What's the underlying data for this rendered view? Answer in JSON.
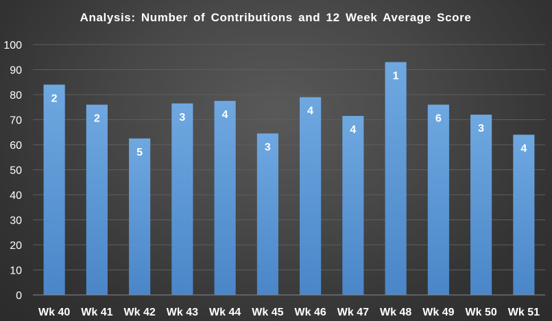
{
  "chart_data": {
    "type": "bar",
    "title": "Analysis:  Number of Contributions and 12 Week Average Score",
    "xlabel": "",
    "ylabel": "",
    "categories": [
      "Wk 40",
      "Wk 41",
      "Wk 42",
      "Wk 43",
      "Wk 44",
      "Wk 45",
      "Wk 46",
      "Wk 47",
      "Wk 48",
      "Wk 49",
      "Wk 50",
      "Wk 51"
    ],
    "values": [
      84,
      76,
      62.5,
      76.5,
      77.5,
      64.5,
      79,
      71.5,
      93,
      76,
      72,
      64
    ],
    "data_labels": [
      "2",
      "2",
      "5",
      "3",
      "4",
      "3",
      "4",
      "4",
      "1",
      "6",
      "3",
      "4"
    ],
    "ylim": [
      0,
      100
    ],
    "yticks": [
      0,
      10,
      20,
      30,
      40,
      50,
      60,
      70,
      80,
      90,
      100
    ],
    "grid": true,
    "legend": "none",
    "colors": {
      "bar_top": "#6fa8e0",
      "bar_bottom": "#4a86c8",
      "background": "#3a3a3a",
      "text": "#ffffff",
      "grid": "#5e5e5e"
    }
  }
}
